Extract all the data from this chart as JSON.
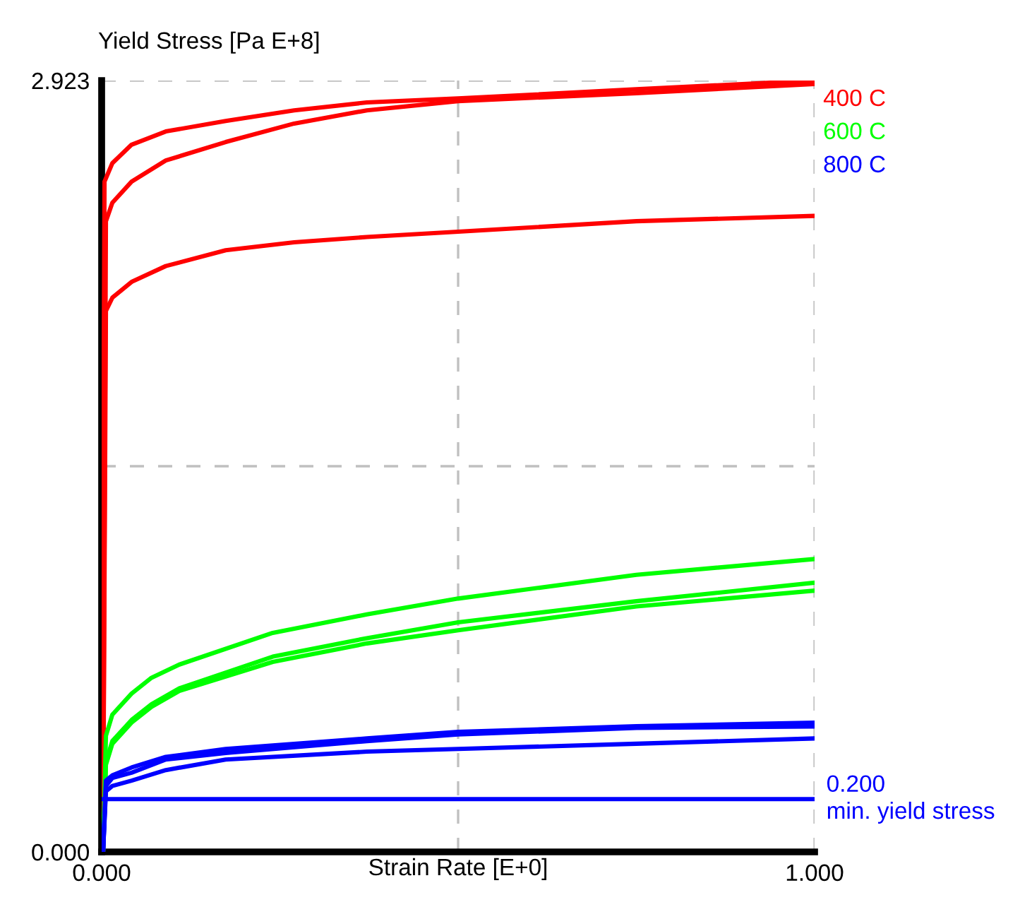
{
  "chart_data": {
    "type": "line",
    "xlabel": "Strain Rate [E+0]",
    "ylabel": "Yield Stress [Pa E+8]",
    "xlim": [
      0,
      1
    ],
    "xticks": [
      {
        "value": 0,
        "label": "0.000"
      },
      {
        "value": 0.5,
        "label": null
      },
      {
        "value": 1,
        "label": "1.000"
      }
    ],
    "ylim": [
      0,
      2.923
    ],
    "yticks": [
      {
        "value": 0,
        "label": "0.000"
      },
      {
        "value": 1.4615,
        "label": null
      },
      {
        "value": 2.923,
        "label": "2.923"
      }
    ],
    "grid": true,
    "legend": "right",
    "line_style": "solid",
    "series": [
      {
        "name": "400 C",
        "color": "#ff0000",
        "x": [
          0,
          0.004,
          0.015,
          0.042,
          0.09,
          0.174,
          0.27,
          0.372,
          0.5,
          0.75,
          1
        ],
        "values": [
          0,
          2.54,
          2.61,
          2.68,
          2.73,
          2.77,
          2.81,
          2.84,
          2.855,
          2.89,
          2.923
        ]
      },
      {
        "color": "#ff0000",
        "x": [
          0.002,
          0.006,
          0.015,
          0.042,
          0.09,
          0.174,
          0.27,
          0.372,
          0.5,
          0.75,
          1
        ],
        "values": [
          0,
          2.39,
          2.46,
          2.54,
          2.62,
          2.69,
          2.76,
          2.81,
          2.845,
          2.875,
          2.91
        ]
      },
      {
        "color": "#ff0000",
        "x": [
          0.002,
          0.006,
          0.015,
          0.042,
          0.09,
          0.174,
          0.27,
          0.372,
          0.5,
          0.75,
          1
        ],
        "values": [
          0,
          2.05,
          2.1,
          2.16,
          2.22,
          2.28,
          2.31,
          2.33,
          2.35,
          2.39,
          2.41
        ]
      },
      {
        "name": "600 C",
        "color": "#00ff00",
        "x": [
          0.002,
          0.006,
          0.015,
          0.042,
          0.07,
          0.109,
          0.24,
          0.372,
          0.5,
          0.75,
          1
        ],
        "values": [
          0,
          0.44,
          0.52,
          0.6,
          0.66,
          0.71,
          0.83,
          0.9,
          0.96,
          1.05,
          1.11
        ]
      },
      {
        "color": "#00ff00",
        "x": [
          0.002,
          0.006,
          0.015,
          0.042,
          0.07,
          0.109,
          0.24,
          0.372,
          0.5,
          0.75,
          1
        ],
        "values": [
          0,
          0.34,
          0.42,
          0.5,
          0.56,
          0.62,
          0.74,
          0.81,
          0.87,
          0.95,
          1.02
        ]
      },
      {
        "color": "#00ff00",
        "x": [
          0.002,
          0.006,
          0.015,
          0.042,
          0.07,
          0.109,
          0.24,
          0.372,
          0.5,
          0.75,
          1
        ],
        "values": [
          0,
          0.33,
          0.41,
          0.49,
          0.55,
          0.61,
          0.72,
          0.79,
          0.84,
          0.93,
          0.99
        ]
      },
      {
        "name": "800 C",
        "color": "#0000ff",
        "x": [
          0.002,
          0.006,
          0.015,
          0.042,
          0.09,
          0.174,
          0.372,
          0.5,
          0.75,
          1
        ],
        "values": [
          0,
          0.27,
          0.29,
          0.32,
          0.36,
          0.39,
          0.43,
          0.455,
          0.476,
          0.49
        ]
      },
      {
        "color": "#0000ff",
        "x": [
          0.002,
          0.006,
          0.015,
          0.042,
          0.09,
          0.174,
          0.372,
          0.5,
          0.75,
          1
        ],
        "values": [
          0,
          0.25,
          0.28,
          0.3,
          0.35,
          0.375,
          0.42,
          0.445,
          0.47,
          0.475
        ]
      },
      {
        "color": "#0000ff",
        "x": [
          0.002,
          0.006,
          0.015,
          0.042,
          0.09,
          0.174,
          0.372,
          0.5,
          0.75,
          1
        ],
        "values": [
          0,
          0.23,
          0.25,
          0.27,
          0.31,
          0.35,
          0.38,
          0.39,
          0.41,
          0.43
        ]
      }
    ],
    "ref_lines": [
      {
        "axis": "y",
        "value": 0.2,
        "label": "0.200\nmin. yield stress",
        "color": "#0000ff",
        "line_style": "solid"
      }
    ]
  }
}
